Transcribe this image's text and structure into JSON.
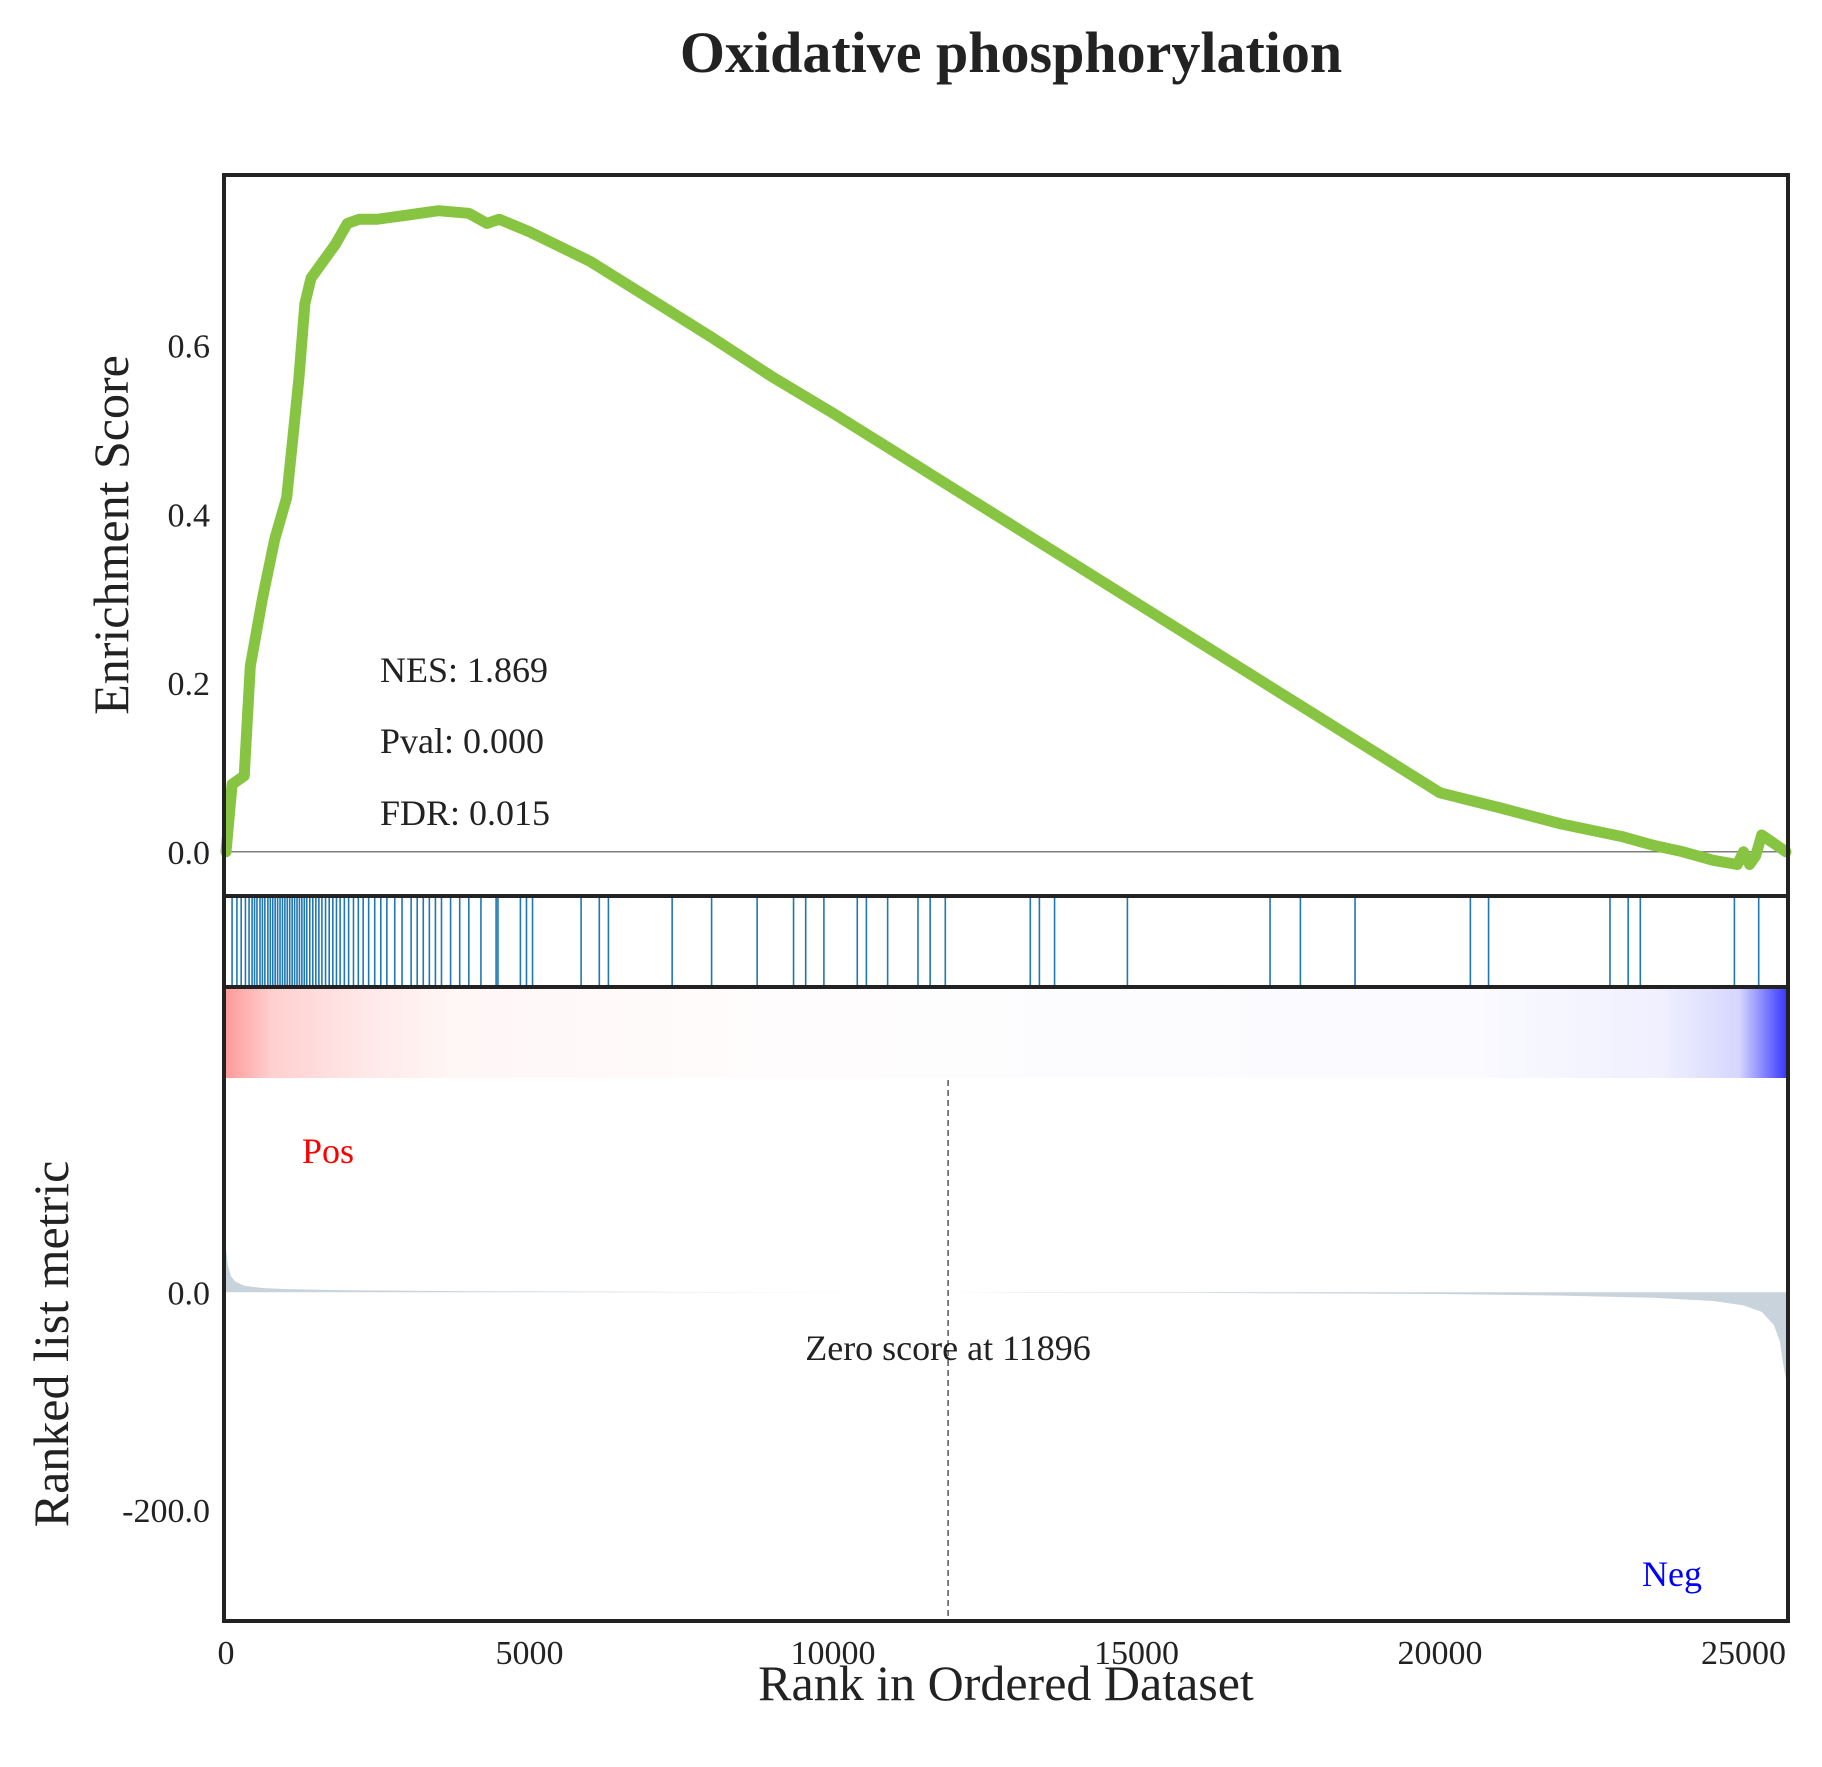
{
  "title": "Oxidative phosphorylation",
  "colors": {
    "es_line": "#86c441",
    "hit_lines": "#1f77b4",
    "pos_label": "#ff0000",
    "neg_label": "#0000ff",
    "metric_fill": "#c9d3dc",
    "frame": "#222222",
    "baseline": "#555555"
  },
  "chart_data": [
    {
      "type": "line",
      "panel": "enrichment-score",
      "ylabel": "Enrichment Score",
      "yticks": [
        "0.0",
        "0.2",
        "0.4",
        "0.6"
      ],
      "ylim": [
        -0.05,
        0.8
      ],
      "xlim": [
        0,
        25700
      ],
      "stats": {
        "nes": "NES: 1.869",
        "pval": "Pval: 0.000",
        "fdr": "FDR: 0.015"
      },
      "x": [
        0,
        100,
        300,
        400,
        600,
        800,
        1000,
        1100,
        1200,
        1300,
        1400,
        1600,
        1800,
        2000,
        2200,
        2500,
        3000,
        3500,
        4000,
        4300,
        4500,
        5000,
        6000,
        7000,
        8000,
        9000,
        10000,
        11000,
        12000,
        13000,
        14000,
        15000,
        16000,
        17000,
        18000,
        19000,
        20000,
        21000,
        22000,
        23000,
        23500,
        24000,
        24500,
        24900,
        25000,
        25100,
        25200,
        25300,
        25400,
        25500,
        25600,
        25700
      ],
      "y": [
        0,
        0.08,
        0.09,
        0.22,
        0.3,
        0.37,
        0.42,
        0.49,
        0.56,
        0.65,
        0.68,
        0.7,
        0.72,
        0.745,
        0.75,
        0.75,
        0.755,
        0.76,
        0.757,
        0.745,
        0.75,
        0.735,
        0.7,
        0.655,
        0.61,
        0.563,
        0.52,
        0.475,
        0.43,
        0.385,
        0.34,
        0.295,
        0.25,
        0.205,
        0.16,
        0.115,
        0.07,
        0.052,
        0.033,
        0.018,
        0.008,
        0.0,
        -0.01,
        -0.015,
        0.0,
        -0.015,
        -0.005,
        0.02,
        0.015,
        0.01,
        0.005,
        0.0
      ]
    },
    {
      "type": "rug",
      "panel": "gene-hits",
      "x": [
        100,
        180,
        250,
        320,
        380,
        430,
        470,
        510,
        560,
        600,
        640,
        690,
        730,
        770,
        810,
        850,
        890,
        930,
        970,
        1010,
        1050,
        1090,
        1130,
        1170,
        1210,
        1250,
        1290,
        1330,
        1380,
        1430,
        1480,
        1530,
        1580,
        1640,
        1700,
        1760,
        1820,
        1880,
        1950,
        2020,
        2100,
        2180,
        2260,
        2350,
        2450,
        2550,
        2650,
        2780,
        2900,
        3050,
        3150,
        3250,
        3350,
        3450,
        3550,
        3700,
        3850,
        4000,
        4200,
        4450,
        4480,
        4850,
        4950,
        5050,
        5850,
        6150,
        6300,
        7350,
        8000,
        8750,
        9350,
        9550,
        9850,
        10400,
        10550,
        10900,
        11400,
        11600,
        11850,
        13250,
        13400,
        13650,
        14850,
        17200,
        17700,
        18600,
        20500,
        20800,
        22800,
        23100,
        23300,
        24850,
        25250
      ]
    },
    {
      "type": "area",
      "panel": "ranked-list-metric",
      "ylabel": "Ranked list metric",
      "xlabel": "Rank in Ordered Dataset",
      "yticks": [
        "0.0",
        "-200.0"
      ],
      "xticks": [
        "0",
        "5000",
        "10000",
        "15000",
        "20000",
        "25000"
      ],
      "ylim": [
        -300,
        195
      ],
      "xlim": [
        0,
        25700
      ],
      "zero_score": "Zero score at 11896",
      "zero_cross_x": 11896,
      "pos_label": "Pos",
      "neg_label": "Neg",
      "x": [
        0,
        30,
        80,
        150,
        300,
        600,
        1000,
        2000,
        4000,
        8000,
        11896,
        16000,
        20000,
        22000,
        23500,
        24500,
        25000,
        25300,
        25500,
        25600,
        25650,
        25700
      ],
      "y": [
        40,
        25,
        15,
        10,
        6,
        4,
        3,
        2,
        1,
        0.3,
        0,
        -0.5,
        -1.5,
        -3,
        -5,
        -8,
        -12,
        -18,
        -30,
        -45,
        -65,
        -80
      ]
    }
  ]
}
